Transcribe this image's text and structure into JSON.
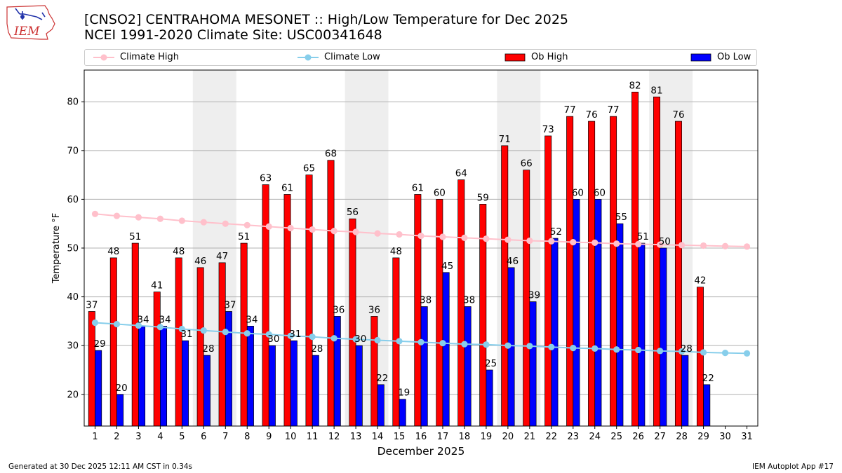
{
  "header": {
    "title_line1": "[CNSO2] CENTRAHOMA MESONET :: High/Low Temperature for Dec 2025",
    "title_line2": "NCEI 1991-2020 Climate Site: USC00341648",
    "logo_text": "IEM"
  },
  "legend": {
    "climate_high": "Climate High",
    "climate_low": "Climate Low",
    "ob_high": "Ob High",
    "ob_low": "Ob Low"
  },
  "colors": {
    "climate_high": "#ffc0cb",
    "climate_low": "#87ceeb",
    "ob_high": "#ff0000",
    "ob_low": "#0000ff",
    "weekend_shade": "#eeeeee",
    "grid": "#b0b0b0"
  },
  "footer": {
    "left": "Generated at 30 Dec 2025 12:11 AM CST in 0.34s",
    "right": "IEM Autoplot App #17"
  },
  "chart_data": {
    "type": "bar",
    "title": "[CNSO2] CENTRAHOMA MESONET :: High/Low Temperature for Dec 2025",
    "xlabel": "December 2025",
    "ylabel": "Temperature °F",
    "ylim": [
      13.5,
      86.5
    ],
    "yticks": [
      20,
      30,
      40,
      50,
      60,
      70,
      80
    ],
    "grid": "horizontal",
    "legend_position": "top",
    "categories": [
      "1",
      "2",
      "3",
      "4",
      "5",
      "6",
      "7",
      "8",
      "9",
      "10",
      "11",
      "12",
      "13",
      "14",
      "15",
      "16",
      "17",
      "18",
      "19",
      "20",
      "21",
      "22",
      "23",
      "24",
      "25",
      "26",
      "27",
      "28",
      "29",
      "30",
      "31"
    ],
    "shaded_days": [
      [
        6,
        7
      ],
      [
        13,
        14
      ],
      [
        20,
        21
      ],
      [
        27,
        28
      ]
    ],
    "series": [
      {
        "name": "Ob High",
        "kind": "bar",
        "values": [
          37,
          48,
          51,
          41,
          48,
          46,
          47,
          51,
          63,
          61,
          65,
          68,
          56,
          36,
          48,
          61,
          60,
          64,
          59,
          71,
          66,
          73,
          77,
          76,
          77,
          82,
          81,
          76,
          42,
          null,
          null
        ]
      },
      {
        "name": "Ob Low",
        "kind": "bar",
        "values": [
          29,
          20,
          34,
          34,
          31,
          28,
          37,
          34,
          30,
          31,
          28,
          36,
          30,
          22,
          19,
          38,
          45,
          38,
          25,
          46,
          39,
          52,
          60,
          60,
          55,
          51,
          50,
          28,
          22,
          null,
          null
        ]
      },
      {
        "name": "Climate High",
        "kind": "line",
        "values": [
          57.0,
          56.6,
          56.3,
          56.0,
          55.6,
          55.3,
          55.0,
          54.7,
          54.4,
          54.1,
          53.8,
          53.5,
          53.3,
          53.0,
          52.8,
          52.5,
          52.3,
          52.1,
          51.9,
          51.7,
          51.5,
          51.4,
          51.2,
          51.1,
          50.9,
          50.8,
          50.7,
          50.6,
          50.5,
          50.4,
          50.3
        ]
      },
      {
        "name": "Climate Low",
        "kind": "line",
        "values": [
          34.7,
          34.4,
          34.1,
          33.8,
          33.4,
          33.1,
          32.8,
          32.5,
          32.3,
          32.0,
          31.8,
          31.5,
          31.3,
          31.1,
          30.9,
          30.7,
          30.5,
          30.3,
          30.2,
          30.0,
          29.9,
          29.7,
          29.5,
          29.4,
          29.2,
          29.1,
          28.9,
          28.8,
          28.6,
          28.5,
          28.4
        ]
      }
    ]
  }
}
